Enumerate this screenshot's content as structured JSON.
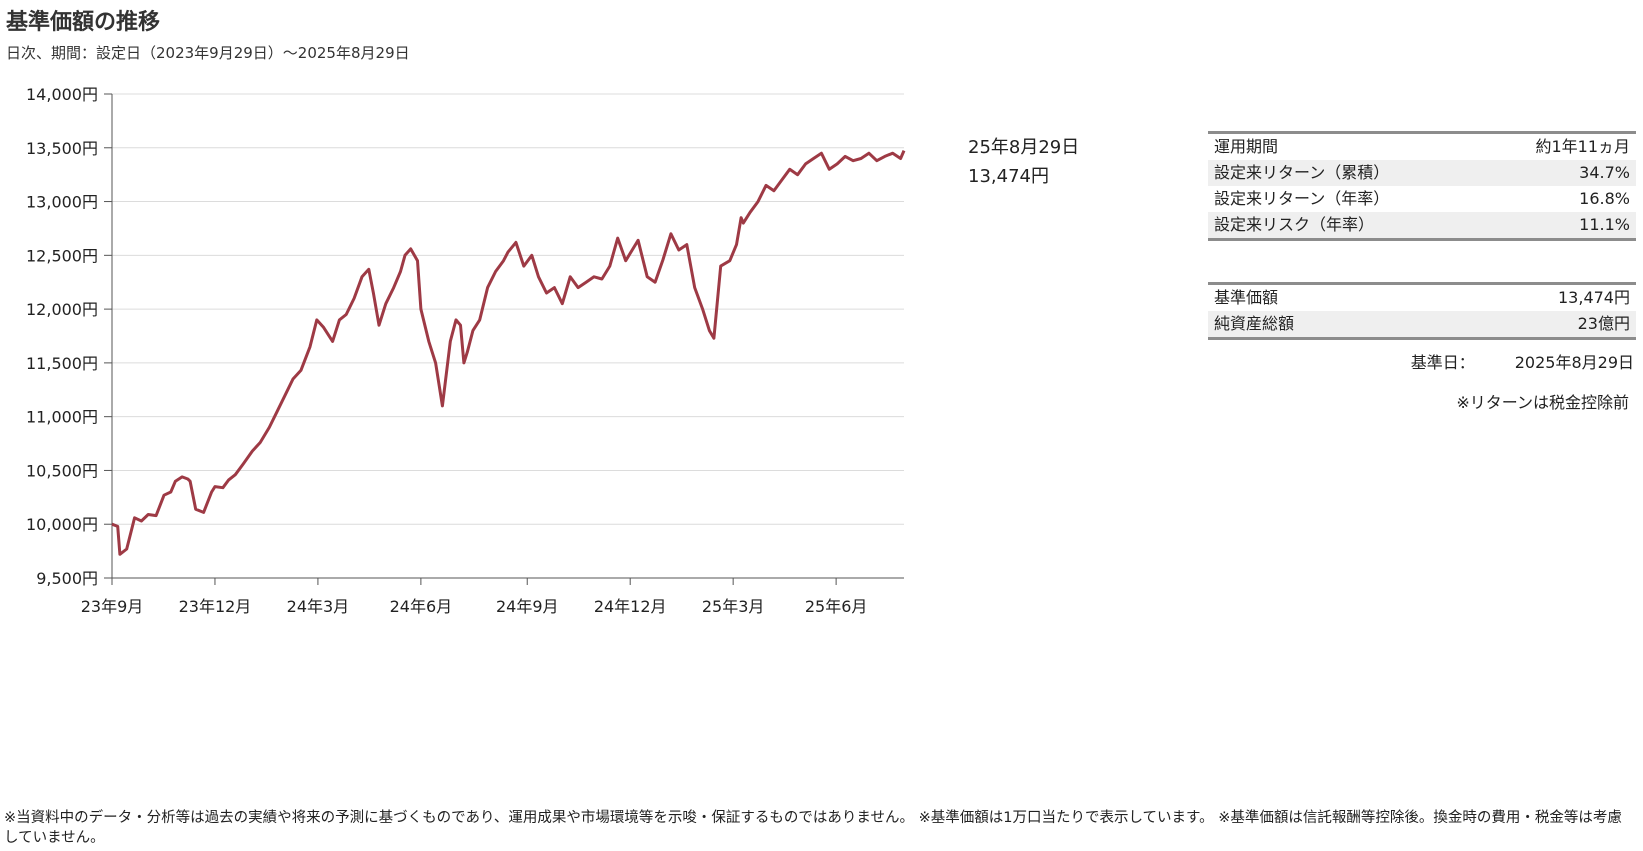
{
  "header": {
    "title": "基準価額の推移",
    "subtitle": "日次、期間：設定日（2023年9月29日）～2025年8月29日"
  },
  "end_label": {
    "date": "25年8月29日",
    "value": "13,474円"
  },
  "stats_table": [
    {
      "label": "運用期間",
      "value": "約1年11ヵ月"
    },
    {
      "label": "設定来リターン（累積）",
      "value": "34.7%"
    },
    {
      "label": "設定来リターン（年率）",
      "value": "16.8%"
    },
    {
      "label": "設定来リスク（年率）",
      "value": "11.1%"
    }
  ],
  "nav_table": [
    {
      "label": "基準価額",
      "value": "13,474円"
    },
    {
      "label": "純資産総額",
      "value": "23億円"
    }
  ],
  "base_date": {
    "label": "基準日：",
    "value": "2025年8月29日"
  },
  "return_note": "※リターンは税金控除前",
  "footnote": "※当資料中のデータ・分析等は過去の実績や将来の予測に基づくものであり、運用成果や市場環境等を示唆・保証するものではありません。 ※基準価額は1万口当たりで表示しています。 ※基準価額は信託報酬等控除後。換金時の費用・税金等は考慮していません。",
  "chart_data": {
    "type": "line",
    "title": "基準価額の推移",
    "line_color": "#9e3a45",
    "grid": true,
    "ylim": [
      9500,
      14000
    ],
    "ytick_values": [
      9500,
      10000,
      10500,
      11000,
      11500,
      12000,
      12500,
      13000,
      13500,
      14000
    ],
    "ytick_labels": [
      "9,500円",
      "10,000円",
      "10,500円",
      "11,000円",
      "11,500円",
      "12,000円",
      "12,500円",
      "13,000円",
      "13,500円",
      "14,000円"
    ],
    "xlim": [
      "2023-09-29",
      "2025-08-29"
    ],
    "xtick_dates": [
      "2023-09-29",
      "2023-12-29",
      "2024-03-29",
      "2024-06-28",
      "2024-09-30",
      "2024-12-30",
      "2025-03-31",
      "2025-06-30"
    ],
    "xtick_labels": [
      "23年9月",
      "23年12月",
      "24年3月",
      "24年6月",
      "24年9月",
      "24年12月",
      "25年3月",
      "25年6月"
    ],
    "series": [
      {
        "x": [
          "2023-09-29",
          "2023-10-04",
          "2023-10-06",
          "2023-10-12",
          "2023-10-19",
          "2023-10-25",
          "2023-10-31",
          "2023-11-07",
          "2023-11-14",
          "2023-11-20",
          "2023-11-24",
          "2023-11-30",
          "2023-12-05",
          "2023-12-07",
          "2023-12-12",
          "2023-12-19",
          "2023-12-26",
          "2023-12-29",
          "2024-01-05",
          "2024-01-10",
          "2024-01-16",
          "2024-01-23",
          "2024-01-31",
          "2024-02-07",
          "2024-02-15",
          "2024-02-22",
          "2024-02-29",
          "2024-03-07",
          "2024-03-14",
          "2024-03-22",
          "2024-03-28",
          "2024-04-03",
          "2024-04-11",
          "2024-04-17",
          "2024-04-23",
          "2024-04-30",
          "2024-05-07",
          "2024-05-13",
          "2024-05-17",
          "2024-05-22",
          "2024-05-28",
          "2024-06-04",
          "2024-06-10",
          "2024-06-14",
          "2024-06-19",
          "2024-06-25",
          "2024-06-28",
          "2024-07-05",
          "2024-07-11",
          "2024-07-17",
          "2024-07-24",
          "2024-07-29",
          "2024-08-02",
          "2024-08-05",
          "2024-08-08",
          "2024-08-13",
          "2024-08-19",
          "2024-08-26",
          "2024-09-02",
          "2024-09-09",
          "2024-09-13",
          "2024-09-20",
          "2024-09-27",
          "2024-10-04",
          "2024-10-10",
          "2024-10-17",
          "2024-10-24",
          "2024-10-31",
          "2024-11-07",
          "2024-11-14",
          "2024-11-21",
          "2024-11-28",
          "2024-12-05",
          "2024-12-12",
          "2024-12-19",
          "2024-12-26",
          "2025-01-06",
          "2025-01-14",
          "2025-01-21",
          "2025-01-28",
          "2025-02-04",
          "2025-02-11",
          "2025-02-18",
          "2025-02-25",
          "2025-03-04",
          "2025-03-10",
          "2025-03-14",
          "2025-03-20",
          "2025-03-28",
          "2025-04-03",
          "2025-04-07",
          "2025-04-09",
          "2025-04-15",
          "2025-04-22",
          "2025-04-29",
          "2025-05-06",
          "2025-05-13",
          "2025-05-20",
          "2025-05-27",
          "2025-06-03",
          "2025-06-10",
          "2025-06-17",
          "2025-06-24",
          "2025-07-01",
          "2025-07-08",
          "2025-07-15",
          "2025-07-22",
          "2025-07-29",
          "2025-08-05",
          "2025-08-12",
          "2025-08-19",
          "2025-08-26",
          "2025-08-29"
        ],
        "values": [
          10000,
          9980,
          9720,
          9770,
          10060,
          10030,
          10090,
          10080,
          10270,
          10300,
          10400,
          10440,
          10420,
          10400,
          10140,
          10110,
          10300,
          10350,
          10340,
          10410,
          10460,
          10560,
          10680,
          10760,
          10900,
          11050,
          11200,
          11350,
          11430,
          11650,
          11900,
          11830,
          11700,
          11900,
          11950,
          12100,
          12300,
          12370,
          12150,
          11850,
          12050,
          12200,
          12350,
          12500,
          12560,
          12450,
          12000,
          11700,
          11500,
          11100,
          11700,
          11900,
          11850,
          11500,
          11600,
          11800,
          11900,
          12200,
          12350,
          12450,
          12530,
          12620,
          12400,
          12500,
          12300,
          12150,
          12200,
          12050,
          12300,
          12200,
          12250,
          12300,
          12280,
          12400,
          12660,
          12450,
          12640,
          12300,
          12250,
          12460,
          12700,
          12550,
          12600,
          12200,
          12000,
          11800,
          11730,
          12400,
          12450,
          12600,
          12850,
          12800,
          12900,
          13000,
          13150,
          13100,
          13200,
          13300,
          13250,
          13350,
          13400,
          13450,
          13300,
          13350,
          13420,
          13380,
          13400,
          13450,
          13380,
          13420,
          13450,
          13400,
          13474
        ]
      }
    ]
  }
}
